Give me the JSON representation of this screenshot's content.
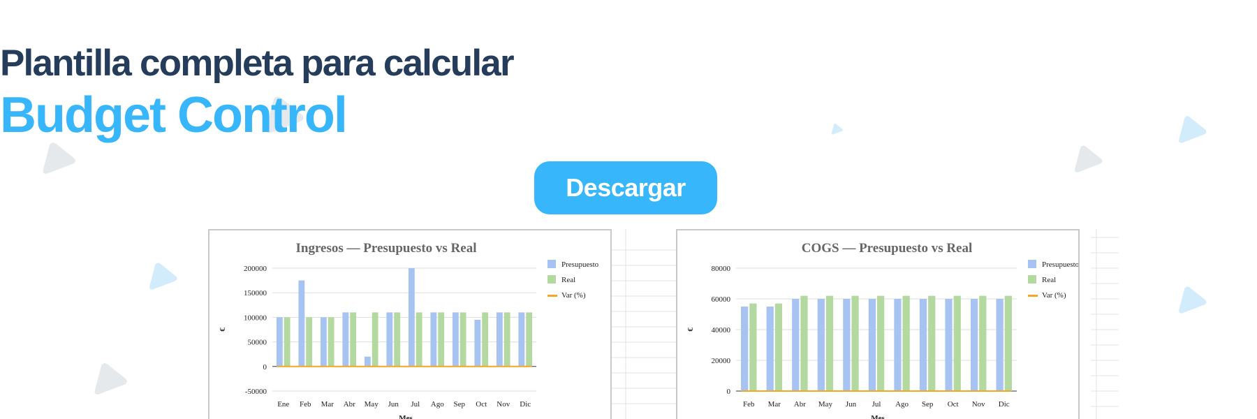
{
  "hero": {
    "title_line1": "Plantilla completa para calcular",
    "title_line2": "Budget Control",
    "button_label": "Descargar"
  },
  "colors": {
    "title_dark": "#253d5b",
    "accent": "#38b6fb",
    "presupuesto": "#a6c3f2",
    "real": "#b4d9a0",
    "var": "#f5a623"
  },
  "chart_data": [
    {
      "type": "bar",
      "title": "Ingresos — Presupuesto vs Real",
      "xlabel": "Mes",
      "ylabel": "€",
      "ylim": [
        -50000,
        200000
      ],
      "yticks": [
        "200000",
        "150000",
        "100000",
        "50000",
        "0",
        "-50000"
      ],
      "categories": [
        "Ene",
        "Feb",
        "Mar",
        "Abr",
        "May",
        "Jun",
        "Jul",
        "Ago",
        "Sep",
        "Oct",
        "Nov",
        "Dic"
      ],
      "legend_position": "right",
      "series": [
        {
          "name": "Presupuesto",
          "type": "bar",
          "values": [
            100000,
            175000,
            100000,
            110000,
            20000,
            110000,
            200000,
            110000,
            110000,
            95000,
            110000,
            110000
          ]
        },
        {
          "name": "Real",
          "type": "bar",
          "values": [
            100000,
            100000,
            100000,
            110000,
            110000,
            110000,
            110000,
            110000,
            110000,
            110000,
            110000,
            110000
          ]
        },
        {
          "name": "Var (%)",
          "type": "line",
          "values": [
            0,
            0,
            0,
            0,
            0,
            0,
            0,
            0,
            0,
            0,
            0,
            0
          ]
        }
      ]
    },
    {
      "type": "bar",
      "title": "COGS — Presupuesto vs Real",
      "xlabel": "Mes",
      "ylabel": "€",
      "ylim": [
        0,
        80000
      ],
      "yticks": [
        "80000",
        "60000",
        "40000",
        "20000",
        "0"
      ],
      "categories": [
        "Feb",
        "Mar",
        "Abr",
        "May",
        "Jun",
        "Jul",
        "Ago",
        "Sep",
        "Oct",
        "Nov",
        "Dic"
      ],
      "legend_position": "right",
      "series": [
        {
          "name": "Presupuesto",
          "type": "bar",
          "values": [
            55000,
            55000,
            60000,
            60000,
            60000,
            60000,
            60000,
            60000,
            60000,
            60000,
            60000
          ]
        },
        {
          "name": "Real",
          "type": "bar",
          "values": [
            57000,
            57000,
            62000,
            62000,
            62000,
            62000,
            62000,
            62000,
            62000,
            62000,
            62000
          ]
        },
        {
          "name": "Var (%)",
          "type": "line",
          "values": [
            0,
            0,
            0,
            0,
            0,
            0,
            0,
            0,
            0,
            0,
            0
          ]
        }
      ]
    }
  ]
}
